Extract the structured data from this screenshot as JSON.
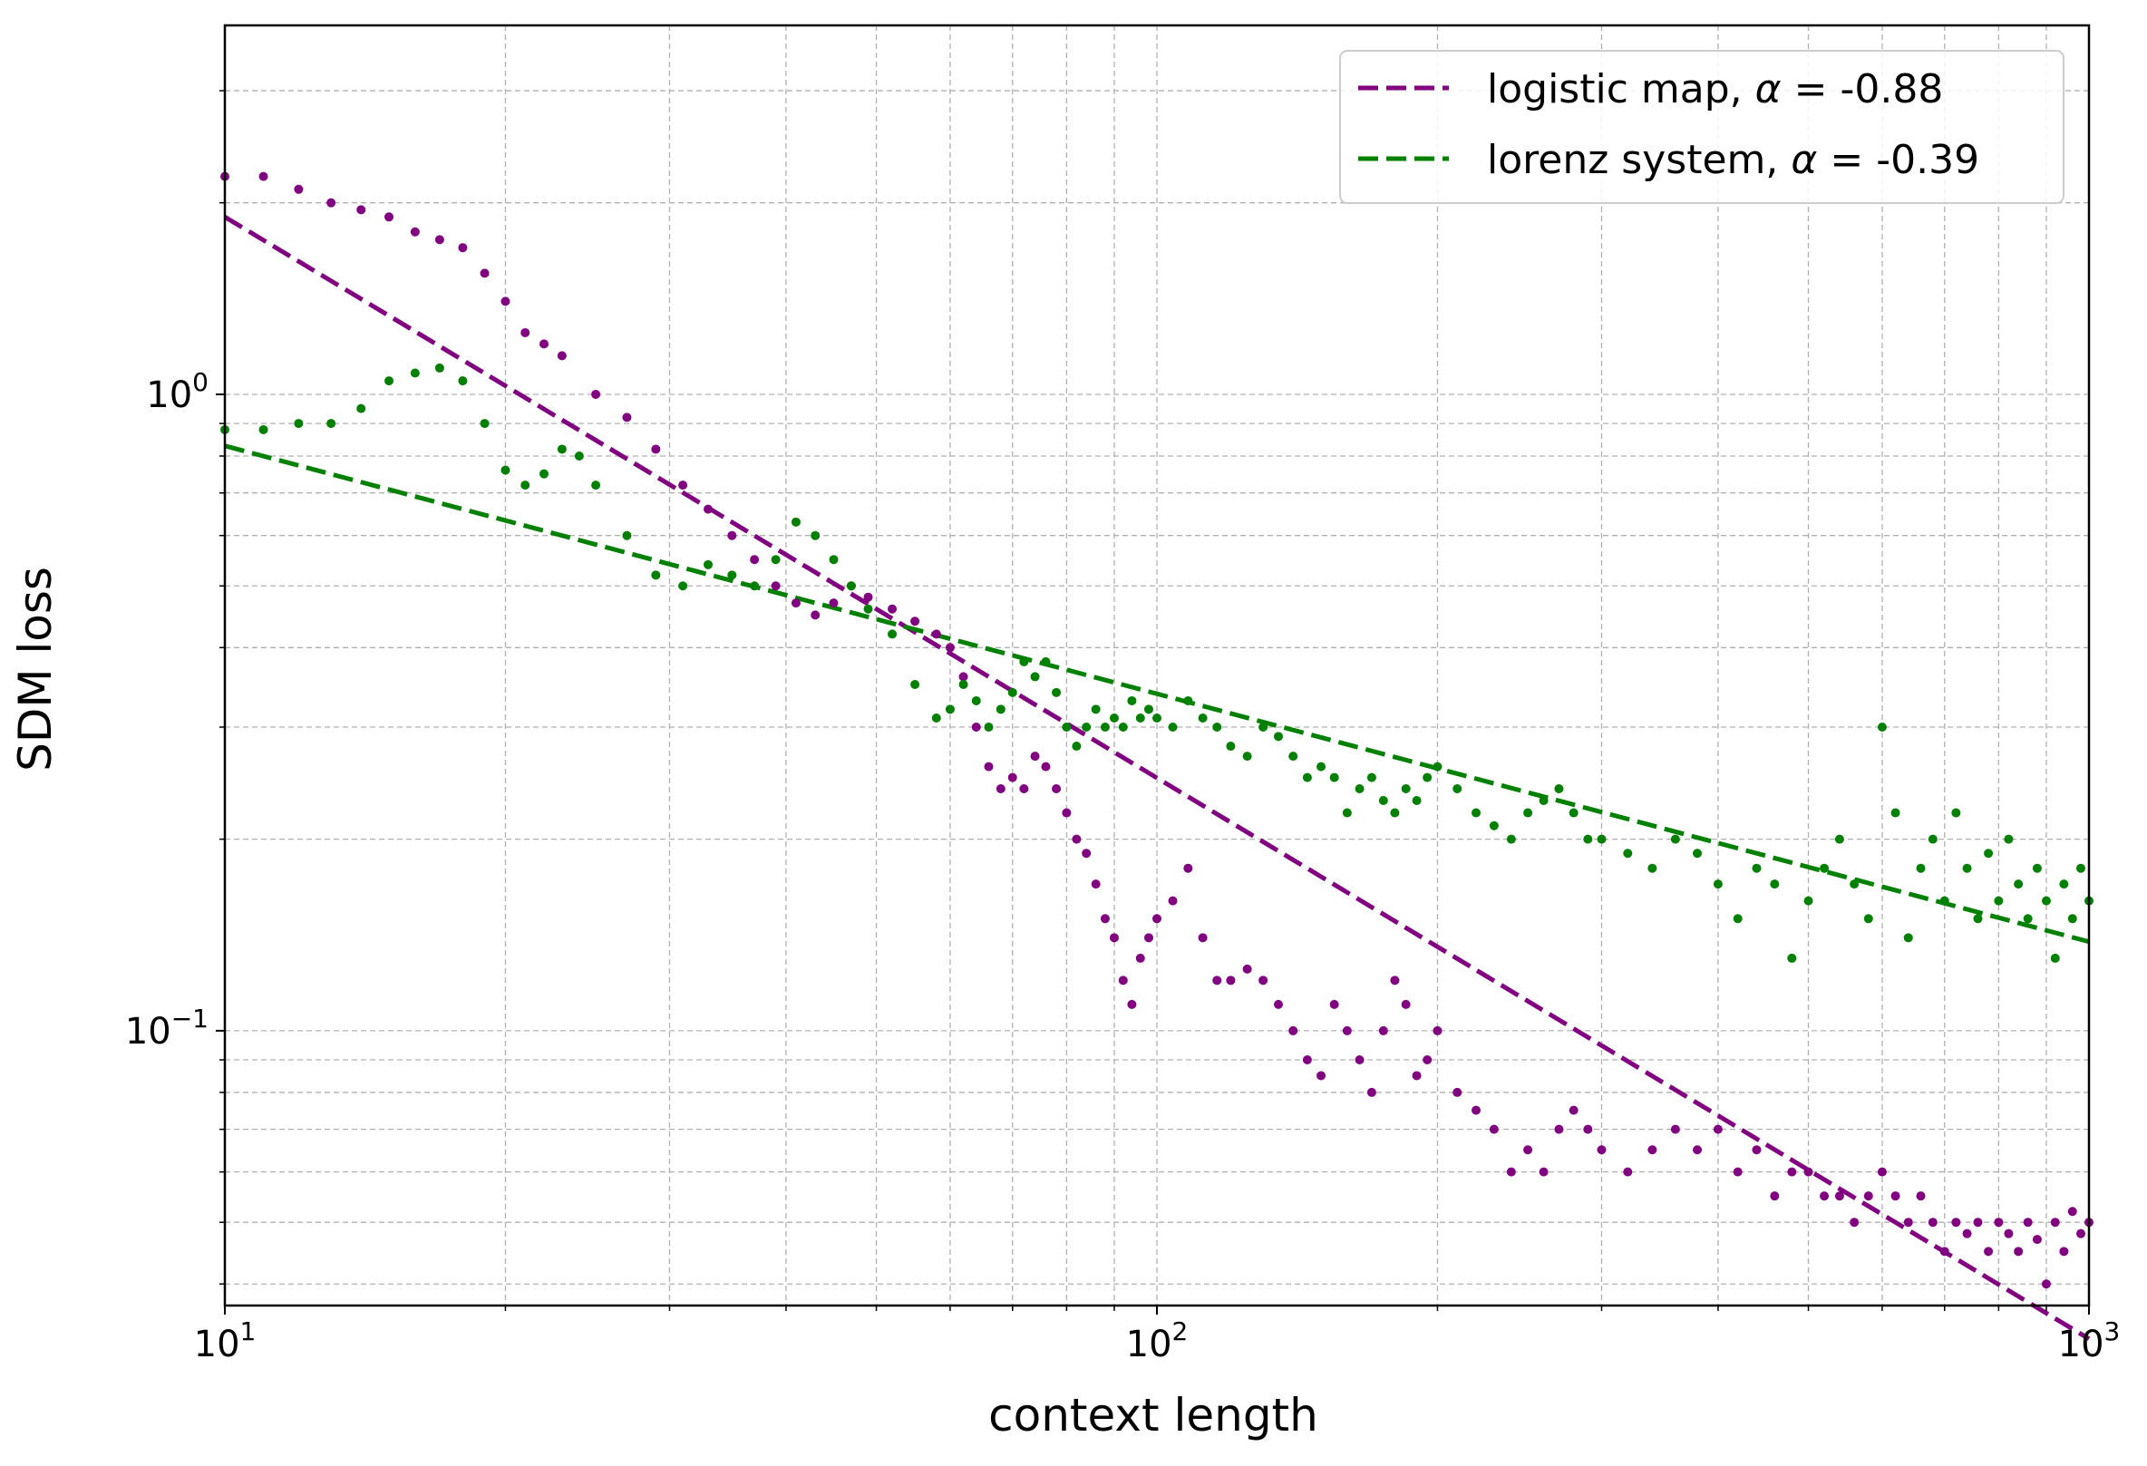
{
  "chart_data": {
    "type": "scatter",
    "title": "",
    "xlabel": "context length",
    "ylabel": "SDM loss",
    "xscale": "log",
    "yscale": "log",
    "xlim": [
      10,
      1000
    ],
    "ylim": [
      0.037,
      3.8
    ],
    "grid": "both (major and minor), dashed",
    "legend_position": "top-right",
    "xticks": [
      {
        "value": 10,
        "base": "10",
        "exp": "1"
      },
      {
        "value": 100,
        "base": "10",
        "exp": "2"
      },
      {
        "value": 1000,
        "base": "10",
        "exp": "3"
      }
    ],
    "yticks": [
      {
        "value": 1,
        "base": "10",
        "exp": "0"
      },
      {
        "value": 0.1,
        "base": "10",
        "exp": "−1"
      }
    ],
    "series": [
      {
        "name": "logistic map",
        "alpha_text": "-0.88",
        "color": "#800080",
        "fit": {
          "exponent": -0.88,
          "x": [
            10,
            1000
          ],
          "y": [
            1.9,
            0.0328
          ]
        },
        "points": [
          [
            10,
            2.2
          ],
          [
            11,
            2.2
          ],
          [
            12,
            2.1
          ],
          [
            13,
            2.0
          ],
          [
            14,
            1.95
          ],
          [
            15,
            1.9
          ],
          [
            16,
            1.8
          ],
          [
            17,
            1.75
          ],
          [
            18,
            1.7
          ],
          [
            19,
            1.55
          ],
          [
            20,
            1.4
          ],
          [
            21,
            1.25
          ],
          [
            22,
            1.2
          ],
          [
            23,
            1.15
          ],
          [
            25,
            1.0
          ],
          [
            27,
            0.92
          ],
          [
            29,
            0.82
          ],
          [
            31,
            0.72
          ],
          [
            33,
            0.66
          ],
          [
            35,
            0.6
          ],
          [
            37,
            0.55
          ],
          [
            39,
            0.5
          ],
          [
            41,
            0.47
          ],
          [
            43,
            0.45
          ],
          [
            45,
            0.47
          ],
          [
            47,
            0.5
          ],
          [
            49,
            0.48
          ],
          [
            52,
            0.46
          ],
          [
            55,
            0.44
          ],
          [
            58,
            0.42
          ],
          [
            60,
            0.4
          ],
          [
            62,
            0.36
          ],
          [
            64,
            0.3
          ],
          [
            66,
            0.26
          ],
          [
            68,
            0.24
          ],
          [
            70,
            0.25
          ],
          [
            72,
            0.24
          ],
          [
            74,
            0.27
          ],
          [
            76,
            0.26
          ],
          [
            78,
            0.24
          ],
          [
            80,
            0.22
          ],
          [
            82,
            0.2
          ],
          [
            84,
            0.19
          ],
          [
            86,
            0.17
          ],
          [
            88,
            0.15
          ],
          [
            90,
            0.14
          ],
          [
            92,
            0.12
          ],
          [
            94,
            0.11
          ],
          [
            96,
            0.13
          ],
          [
            98,
            0.14
          ],
          [
            100,
            0.15
          ],
          [
            104,
            0.16
          ],
          [
            108,
            0.18
          ],
          [
            112,
            0.14
          ],
          [
            116,
            0.12
          ],
          [
            120,
            0.12
          ],
          [
            125,
            0.125
          ],
          [
            130,
            0.12
          ],
          [
            135,
            0.11
          ],
          [
            140,
            0.1
          ],
          [
            145,
            0.09
          ],
          [
            150,
            0.085
          ],
          [
            155,
            0.11
          ],
          [
            160,
            0.1
          ],
          [
            165,
            0.09
          ],
          [
            170,
            0.08
          ],
          [
            175,
            0.1
          ],
          [
            180,
            0.12
          ],
          [
            185,
            0.11
          ],
          [
            190,
            0.085
          ],
          [
            195,
            0.09
          ],
          [
            200,
            0.1
          ],
          [
            210,
            0.08
          ],
          [
            220,
            0.075
          ],
          [
            230,
            0.07
          ],
          [
            240,
            0.06
          ],
          [
            250,
            0.065
          ],
          [
            260,
            0.06
          ],
          [
            270,
            0.07
          ],
          [
            280,
            0.075
          ],
          [
            290,
            0.07
          ],
          [
            300,
            0.065
          ],
          [
            320,
            0.06
          ],
          [
            340,
            0.065
          ],
          [
            360,
            0.07
          ],
          [
            380,
            0.065
          ],
          [
            400,
            0.07
          ],
          [
            420,
            0.06
          ],
          [
            440,
            0.065
          ],
          [
            460,
            0.055
          ],
          [
            480,
            0.06
          ],
          [
            500,
            0.06
          ],
          [
            520,
            0.055
          ],
          [
            540,
            0.055
          ],
          [
            560,
            0.05
          ],
          [
            580,
            0.055
          ],
          [
            600,
            0.06
          ],
          [
            620,
            0.055
          ],
          [
            640,
            0.05
          ],
          [
            660,
            0.055
          ],
          [
            680,
            0.05
          ],
          [
            700,
            0.045
          ],
          [
            720,
            0.05
          ],
          [
            740,
            0.048
          ],
          [
            760,
            0.05
          ],
          [
            780,
            0.045
          ],
          [
            800,
            0.05
          ],
          [
            820,
            0.048
          ],
          [
            840,
            0.045
          ],
          [
            860,
            0.05
          ],
          [
            880,
            0.047
          ],
          [
            900,
            0.04
          ],
          [
            920,
            0.05
          ],
          [
            940,
            0.045
          ],
          [
            960,
            0.052
          ],
          [
            980,
            0.048
          ],
          [
            1000,
            0.05
          ]
        ]
      },
      {
        "name": "lorenz system",
        "alpha_text": "-0.39",
        "color": "#008000",
        "fit": {
          "exponent": -0.39,
          "x": [
            10,
            1000
          ],
          "y": [
            0.83,
            0.138
          ]
        },
        "points": [
          [
            10,
            0.88
          ],
          [
            11,
            0.88
          ],
          [
            12,
            0.9
          ],
          [
            13,
            0.9
          ],
          [
            14,
            0.95
          ],
          [
            15,
            1.05
          ],
          [
            16,
            1.08
          ],
          [
            17,
            1.1
          ],
          [
            18,
            1.05
          ],
          [
            19,
            0.9
          ],
          [
            20,
            0.76
          ],
          [
            21,
            0.72
          ],
          [
            22,
            0.75
          ],
          [
            23,
            0.82
          ],
          [
            24,
            0.8
          ],
          [
            25,
            0.72
          ],
          [
            27,
            0.6
          ],
          [
            29,
            0.52
          ],
          [
            31,
            0.5
          ],
          [
            33,
            0.54
          ],
          [
            35,
            0.52
          ],
          [
            37,
            0.5
          ],
          [
            39,
            0.55
          ],
          [
            41,
            0.63
          ],
          [
            43,
            0.6
          ],
          [
            45,
            0.55
          ],
          [
            47,
            0.5
          ],
          [
            49,
            0.46
          ],
          [
            52,
            0.42
          ],
          [
            55,
            0.35
          ],
          [
            58,
            0.31
          ],
          [
            60,
            0.32
          ],
          [
            62,
            0.35
          ],
          [
            64,
            0.33
          ],
          [
            66,
            0.3
          ],
          [
            68,
            0.32
          ],
          [
            70,
            0.34
          ],
          [
            72,
            0.38
          ],
          [
            74,
            0.36
          ],
          [
            76,
            0.38
          ],
          [
            78,
            0.34
          ],
          [
            80,
            0.3
          ],
          [
            82,
            0.28
          ],
          [
            84,
            0.3
          ],
          [
            86,
            0.32
          ],
          [
            88,
            0.3
          ],
          [
            90,
            0.31
          ],
          [
            92,
            0.3
          ],
          [
            94,
            0.33
          ],
          [
            96,
            0.31
          ],
          [
            98,
            0.32
          ],
          [
            100,
            0.31
          ],
          [
            104,
            0.3
          ],
          [
            108,
            0.33
          ],
          [
            112,
            0.31
          ],
          [
            116,
            0.3
          ],
          [
            120,
            0.28
          ],
          [
            125,
            0.27
          ],
          [
            130,
            0.3
          ],
          [
            135,
            0.29
          ],
          [
            140,
            0.27
          ],
          [
            145,
            0.25
          ],
          [
            150,
            0.26
          ],
          [
            155,
            0.25
          ],
          [
            160,
            0.22
          ],
          [
            165,
            0.24
          ],
          [
            170,
            0.25
          ],
          [
            175,
            0.23
          ],
          [
            180,
            0.22
          ],
          [
            185,
            0.24
          ],
          [
            190,
            0.23
          ],
          [
            195,
            0.25
          ],
          [
            200,
            0.26
          ],
          [
            210,
            0.24
          ],
          [
            220,
            0.22
          ],
          [
            230,
            0.21
          ],
          [
            240,
            0.2
          ],
          [
            250,
            0.22
          ],
          [
            260,
            0.23
          ],
          [
            270,
            0.24
          ],
          [
            280,
            0.22
          ],
          [
            290,
            0.2
          ],
          [
            300,
            0.2
          ],
          [
            320,
            0.19
          ],
          [
            340,
            0.18
          ],
          [
            360,
            0.2
          ],
          [
            380,
            0.19
          ],
          [
            400,
            0.17
          ],
          [
            420,
            0.15
          ],
          [
            440,
            0.18
          ],
          [
            460,
            0.17
          ],
          [
            480,
            0.13
          ],
          [
            500,
            0.16
          ],
          [
            520,
            0.18
          ],
          [
            540,
            0.2
          ],
          [
            560,
            0.17
          ],
          [
            580,
            0.15
          ],
          [
            600,
            0.3
          ],
          [
            620,
            0.22
          ],
          [
            640,
            0.14
          ],
          [
            660,
            0.18
          ],
          [
            680,
            0.2
          ],
          [
            700,
            0.16
          ],
          [
            720,
            0.22
          ],
          [
            740,
            0.18
          ],
          [
            760,
            0.15
          ],
          [
            780,
            0.19
          ],
          [
            800,
            0.16
          ],
          [
            820,
            0.2
          ],
          [
            840,
            0.17
          ],
          [
            860,
            0.15
          ],
          [
            880,
            0.18
          ],
          [
            900,
            0.16
          ],
          [
            920,
            0.13
          ],
          [
            940,
            0.17
          ],
          [
            960,
            0.15
          ],
          [
            980,
            0.18
          ],
          [
            1000,
            0.16
          ]
        ]
      }
    ]
  }
}
